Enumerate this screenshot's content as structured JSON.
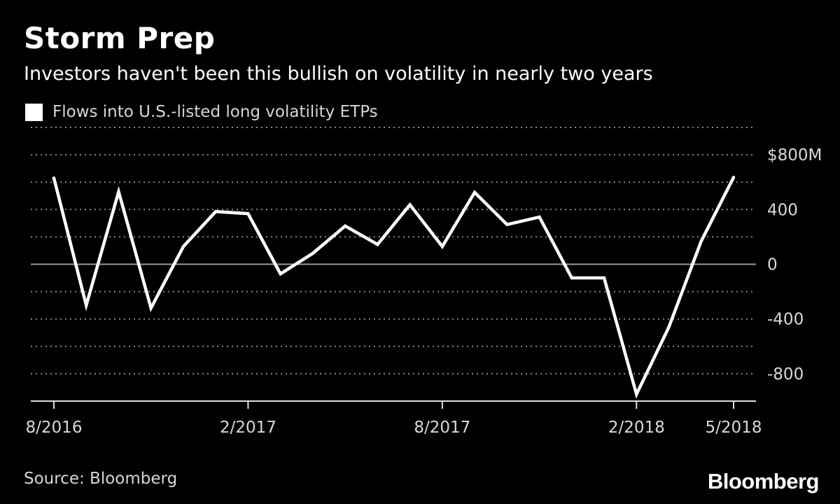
{
  "header": {
    "title": "Storm Prep",
    "subtitle": "Investors haven't been this bullish on volatility in nearly two years"
  },
  "legend": {
    "label": "Flows into U.S.-listed long volatility ETPs"
  },
  "footer": {
    "source": "Source: Bloomberg",
    "brand": "Bloomberg"
  },
  "colors": {
    "background": "#000000",
    "line": "#ffffff",
    "grid": "#8a8a8a",
    "text": "#d9d9d9"
  },
  "chart_data": {
    "type": "line",
    "title": "Storm Prep",
    "subtitle": "Investors haven't been this bullish on volatility in nearly two years",
    "ylabel": "",
    "xlabel": "",
    "y_unit_prefix": "$",
    "y_unit_suffix": "M",
    "ylim": [
      -1000,
      1000
    ],
    "y_ticks": [
      800,
      400,
      0,
      -400,
      -800
    ],
    "y_tick_labels": [
      "$800M",
      "400",
      "0",
      "-400",
      "-800"
    ],
    "x_tick_labels": [
      "8/2016",
      "2/2017",
      "8/2017",
      "2/2018",
      "5/2018"
    ],
    "x_tick_index": [
      0,
      6,
      12,
      18,
      21
    ],
    "grid": true,
    "legend_position": "top-left",
    "series": [
      {
        "name": "Flows into U.S.-listed long volatility ETPs",
        "values": [
          630,
          -300,
          530,
          -320,
          130,
          385,
          370,
          -70,
          80,
          280,
          145,
          435,
          130,
          525,
          290,
          345,
          -100,
          -100,
          -950,
          -460,
          170,
          635
        ]
      }
    ]
  }
}
